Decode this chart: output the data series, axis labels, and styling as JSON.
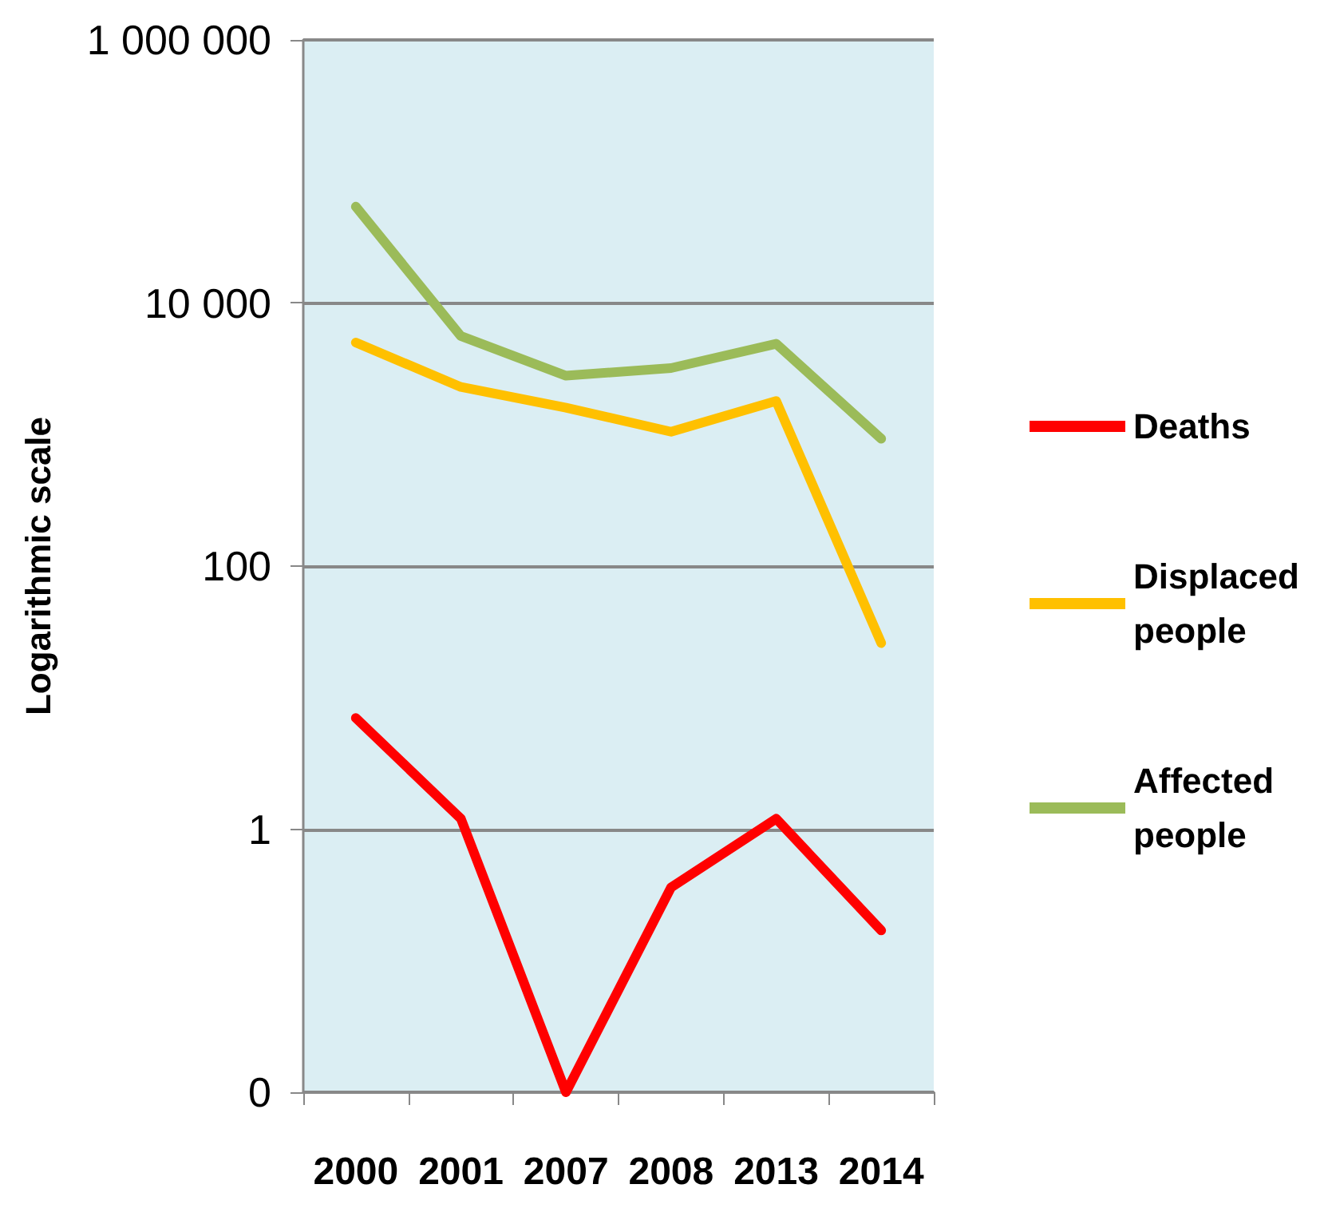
{
  "chart_data": {
    "type": "line",
    "ylabel": "Logarithmic scale",
    "categories": [
      "2000",
      "2001",
      "2007",
      "2008",
      "2013",
      "2014"
    ],
    "series": [
      {
        "name": "Deaths",
        "color": "#ff0000",
        "values": [
          7,
          1.2,
          0.01,
          0.36,
          1.2,
          0.17
        ]
      },
      {
        "name": "Displaced people",
        "color": "#ffc000",
        "values": [
          5000,
          2300,
          1600,
          1050,
          1800,
          26
        ]
      },
      {
        "name": "Affected people",
        "color": "#9bbb59",
        "values": [
          54000,
          5600,
          2800,
          3200,
          4900,
          930
        ]
      }
    ],
    "log": "y",
    "ylim": [
      0.01,
      1000000
    ],
    "yticks": [
      {
        "value": 0.01,
        "label": "0"
      },
      1,
      100,
      {
        "value": 10000,
        "label": "10 000"
      },
      {
        "value": 1000000,
        "label": "1 000 000"
      }
    ],
    "grid": "y",
    "legend": "right",
    "marker": "none",
    "line_style": "solid"
  }
}
